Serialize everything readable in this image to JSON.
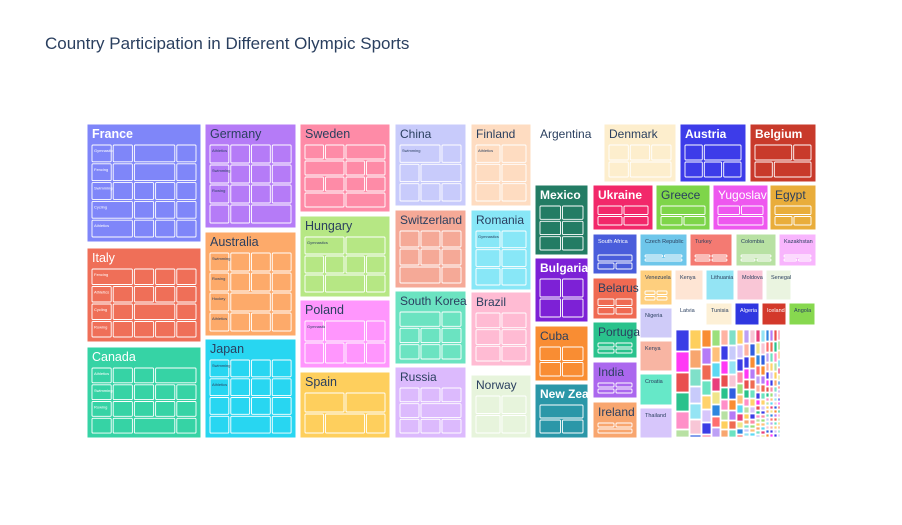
{
  "chart_data": {
    "type": "treemap",
    "title": "Country Participation in Different Olympic Sports",
    "countries": [
      {
        "name": "France",
        "color": "#7f86f9",
        "text": "#ffffff",
        "bold": true,
        "sports": [
          "Gymnastics",
          "Fencing",
          "Swimming",
          "Cycling",
          "Athletics",
          "Rowing",
          "Sailing",
          "Boxing"
        ]
      },
      {
        "name": "Italy",
        "color": "#ef6f58",
        "text": "#ffffff",
        "sports": [
          "Fencing",
          "Athletics",
          "Cycling",
          "Rowing"
        ]
      },
      {
        "name": "Canada",
        "color": "#36d3a5",
        "text": "#ffffff",
        "sports": [
          "Athletics",
          "Swimming",
          "Rowing"
        ]
      },
      {
        "name": "Germany",
        "color": "#b57bf7",
        "text": "#2a3f5f",
        "sports": [
          "Athletics",
          "Swimming",
          "Rowing"
        ]
      },
      {
        "name": "Australia",
        "color": "#fdaa6a",
        "text": "#2a3f5f",
        "sports": [
          "Swimming",
          "Rowing",
          "Hockey",
          "Athletics"
        ]
      },
      {
        "name": "Japan",
        "color": "#28d6f1",
        "text": "#2a3f5f",
        "sports": [
          "Swimming",
          "Athletics"
        ]
      },
      {
        "name": "Sweden",
        "color": "#fe8ba7",
        "text": "#2a3f5f",
        "sports": []
      },
      {
        "name": "Hungary",
        "color": "#b6e784",
        "text": "#2a3f5f",
        "sports": [
          "Gymnastics"
        ]
      },
      {
        "name": "Poland",
        "color": "#ff96fd",
        "text": "#2a3f5f",
        "sports": [
          "Gymnastics"
        ]
      },
      {
        "name": "Spain",
        "color": "#fecf5d",
        "text": "#2a3f5f",
        "sports": []
      },
      {
        "name": "China",
        "color": "#c8cbfb",
        "text": "#2a3f5f",
        "sports": [
          "Swimming"
        ]
      },
      {
        "name": "Switzerland",
        "color": "#f5a997",
        "text": "#2a3f5f",
        "sports": []
      },
      {
        "name": "South Korea",
        "color": "#6be3c1",
        "text": "#2a3f5f",
        "sports": []
      },
      {
        "name": "Russia",
        "color": "#dcbafd",
        "text": "#2a3f5f",
        "sports": []
      },
      {
        "name": "Finland",
        "color": "#fedcc1",
        "text": "#2a3f5f",
        "sports": [
          "Athletics"
        ]
      },
      {
        "name": "Romania",
        "color": "#88e7f7",
        "text": "#2a3f5f",
        "sports": [
          "Gymnastics"
        ]
      },
      {
        "name": "Brazil",
        "color": "#ffbbd3",
        "text": "#2a3f5f",
        "sports": []
      },
      {
        "name": "Norway",
        "color": "#e7f4dc",
        "text": "#2a3f5f",
        "sports": []
      },
      {
        "name": "Argentina",
        "color": "#ffffff",
        "text": "#2a3f5f",
        "sports": []
      },
      {
        "name": "Denmark",
        "color": "#fdeecd",
        "text": "#2a3f5f",
        "sports": []
      },
      {
        "name": "Austria",
        "color": "#3d3ce9",
        "text": "#ffffff",
        "bold": true,
        "sports": []
      },
      {
        "name": "Belgium",
        "color": "#c83a2b",
        "text": "#ffffff",
        "bold": true,
        "sports": []
      },
      {
        "name": "Mexico",
        "color": "#237c64",
        "text": "#ffffff",
        "bold": true,
        "sports": []
      },
      {
        "name": "Ukraine",
        "color": "#f2286a",
        "text": "#ffffff",
        "bold": true,
        "sports": []
      },
      {
        "name": "Greece",
        "color": "#7ed54a",
        "text": "#2a3f5f",
        "sports": []
      },
      {
        "name": "Yugoslavia",
        "color": "#ee57ef",
        "text": "#ffffff",
        "sports": []
      },
      {
        "name": "Egypt",
        "color": "#e9ad3b",
        "text": "#2a3f5f",
        "sports": []
      },
      {
        "name": "Bulgaria",
        "color": "#7d21d6",
        "text": "#ffffff",
        "bold": true,
        "sports": []
      },
      {
        "name": "South Africa",
        "color": "#4a5ddb",
        "text": "#ffffff",
        "sports": []
      },
      {
        "name": "Czech Republic",
        "color": "#6ec6ea",
        "text": "#2a3f5f",
        "sports": []
      },
      {
        "name": "Turkey",
        "color": "#f47a72",
        "text": "#2a3f5f",
        "sports": []
      },
      {
        "name": "Colombia",
        "color": "#b8e1a3",
        "text": "#2a3f5f",
        "sports": []
      },
      {
        "name": "Kazakhstan",
        "color": "#f8b5fd",
        "text": "#2a3f5f",
        "sports": []
      },
      {
        "name": "Belarus",
        "color": "#ef6a52",
        "text": "#2a3f5f",
        "sports": []
      },
      {
        "name": "Cuba",
        "color": "#f98d33",
        "text": "#2a3f5f",
        "sports": []
      },
      {
        "name": "Portugal",
        "color": "#2ac28c",
        "text": "#2a3f5f",
        "sports": []
      },
      {
        "name": "New Zealand",
        "color": "#2b97a8",
        "text": "#ffffff",
        "bold": true,
        "sports": []
      },
      {
        "name": "India",
        "color": "#ab67ee",
        "text": "#2a3f5f",
        "sports": []
      },
      {
        "name": "Ireland",
        "color": "#f8a66f",
        "text": "#2a3f5f",
        "sports": []
      },
      {
        "name": "Venezuela",
        "color": "#fecf7e",
        "text": "#2a3f5f",
        "sports": []
      },
      {
        "name": "Nigeria",
        "color": "#cfcbf8",
        "text": "#2a3f5f",
        "sports": []
      },
      {
        "name": "Kenya",
        "color": "#f8b5a3",
        "text": "#2a3f5f",
        "sports": []
      },
      {
        "name": "Croatia",
        "color": "#66e8c8",
        "text": "#2a3f5f",
        "sports": []
      },
      {
        "name": "Thailand",
        "color": "#d7c6fb",
        "text": "#2a3f5f",
        "sports": []
      },
      {
        "name": "Argentina2",
        "label": "Kenya",
        "color": "#fee5d4",
        "text": "#2a3f5f",
        "sports": []
      },
      {
        "name": "Lithuania",
        "color": "#94e4f4",
        "text": "#2a3f5f",
        "sports": []
      },
      {
        "name": "Moldova",
        "color": "#f9c6d6",
        "text": "#2a3f5f",
        "sports": []
      },
      {
        "name": "Senegal",
        "color": "#eaf4e0",
        "text": "#2a3f5f",
        "sports": []
      },
      {
        "name": "Latvia",
        "color": "#ffffff",
        "text": "#2a3f5f",
        "sports": []
      },
      {
        "name": "Tunisia",
        "color": "#fdf0d6",
        "text": "#2a3f5f",
        "sports": []
      },
      {
        "name": "Algeria",
        "color": "#2f37e0",
        "text": "#ffffff",
        "sports": []
      },
      {
        "name": "Iceland",
        "color": "#d3392b",
        "text": "#ffffff",
        "sports": []
      },
      {
        "name": "Angola",
        "color": "#87d84f",
        "text": "#2a3f5f",
        "sports": []
      }
    ],
    "small_colors": [
      "#3b3de6",
      "#ff39f5",
      "#e94f4f",
      "#2ac28c",
      "#ff8fc8",
      "#b8e1a3",
      "#fecf5d",
      "#f8a66f",
      "#7fe0c9",
      "#c8cbfb",
      "#94e4f4",
      "#f8c6d6",
      "#2f5fe0",
      "#f98d33",
      "#b57bf7",
      "#ef6a52",
      "#6be3c1",
      "#ffd36b",
      "#d7c6fb",
      "#3b3de6",
      "#fe8ba7",
      "#9be07c",
      "#ffc07a",
      "#5dd9f2",
      "#e83f7c",
      "#f0e58a",
      "#2e86de",
      "#ff6e6e",
      "#bda0f5",
      "#ffb3a3"
    ],
    "labels_small": [
      "Czech Republic",
      "Turkey",
      "Colombia",
      "Kazakhstan",
      "Venezuela",
      "Lithuania",
      "Moldova",
      "Senegal",
      "Nigeria",
      "Latvia",
      "Tunisia",
      "Algeria",
      "Iceland",
      "Angola",
      "Kenya",
      "Croatia",
      "Thailand"
    ]
  }
}
